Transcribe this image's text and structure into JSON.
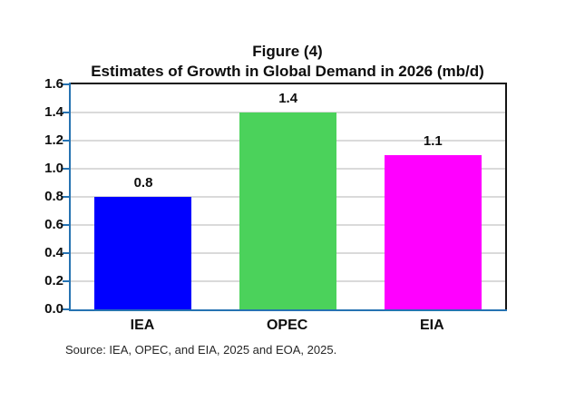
{
  "title": "Figure (4)",
  "subtitle": "Estimates of Growth in Global Demand in 2026 (mb/d)",
  "source_note": "Source: IEA, OPEC, and EIA, 2025 and EOA, 2025.",
  "colors": {
    "bar_iea": "#0000ff",
    "bar_opec": "#4bd25b",
    "bar_eia": "#ff00ff",
    "value_axis_line": "#2673b2",
    "plot_border": "#141414",
    "gridline": "#dadada",
    "text": "#0d0d0d"
  },
  "chart_data": {
    "type": "bar",
    "title": "Figure (4)",
    "subtitle": "Estimates of Growth in Global Demand in 2026 (mb/d)",
    "categories": [
      "IEA",
      "OPEC",
      "EIA"
    ],
    "values": [
      0.8,
      1.4,
      1.1
    ],
    "data_labels": [
      "0.8",
      "1.4",
      "1.1"
    ],
    "bar_colors": [
      "#0000ff",
      "#4bd25b",
      "#ff00ff"
    ],
    "xlabel": "",
    "ylabel": "",
    "ylim": [
      0,
      1.6
    ],
    "ytick_values": [
      0.0,
      0.2,
      0.4,
      0.6,
      0.8,
      1.0,
      1.2,
      1.4,
      1.6
    ],
    "ytick_labels": [
      "0.0",
      "0.2",
      "0.4",
      "0.6",
      "0.8",
      "1.0",
      "1.2",
      "1.4",
      "1.6"
    ],
    "grid": true,
    "legend": false
  }
}
